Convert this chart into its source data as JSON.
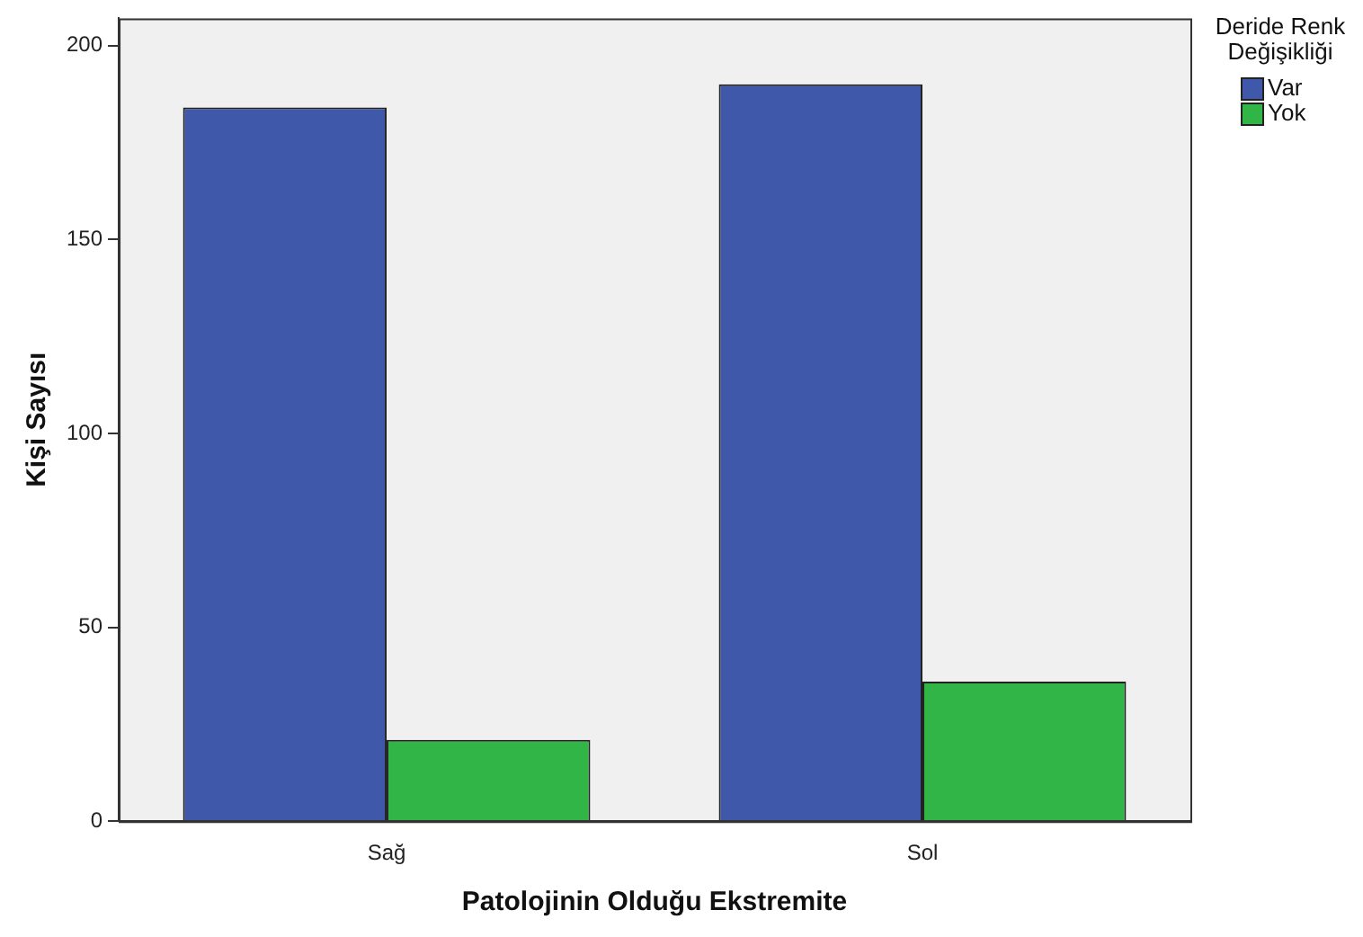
{
  "chart_data": {
    "type": "bar",
    "xlabel": "Patolojinin Olduğu Ekstremite",
    "ylabel": "Kişi Sayısı",
    "legend_title": "Deride Renk Değişikliği",
    "categories": [
      "Sağ",
      "Sol"
    ],
    "series": [
      {
        "name": "Var",
        "color": "#3f58aa",
        "values": [
          184,
          190
        ]
      },
      {
        "name": "Yok",
        "color": "#30b546",
        "values": [
          21,
          36
        ]
      }
    ],
    "ylim": [
      0,
      207
    ],
    "yticks": [
      0,
      50,
      100,
      150,
      200
    ],
    "grid": false,
    "legend": "top right"
  }
}
